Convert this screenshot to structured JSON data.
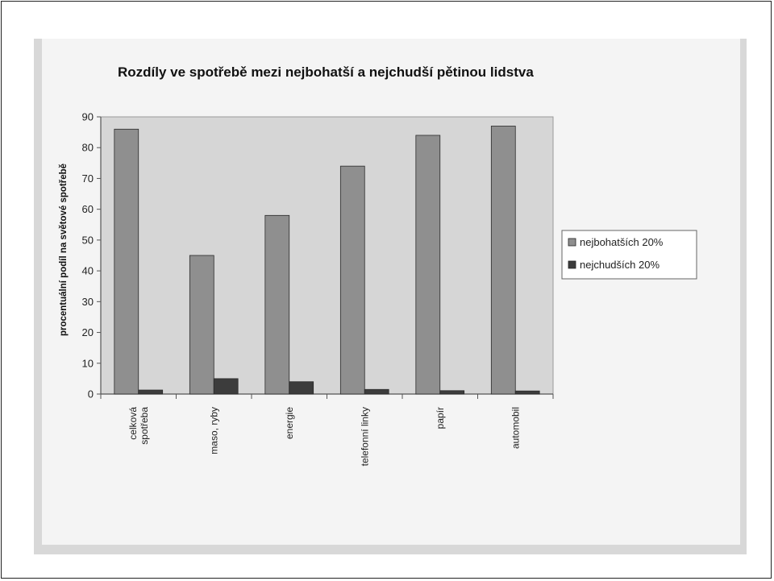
{
  "colors": {
    "rich": "#8f8f8f",
    "poor": "#3c3c3c",
    "plot_bg": "#d6d6d6",
    "axis": "#555555"
  },
  "chart_data": {
    "type": "bar",
    "title": "Rozdíly ve spotřebě mezi nejbohatší a nejchudší pětinou lidstva",
    "ylabel": "procentuální podíl na světové spotřebě",
    "xlabel": "",
    "ylim": [
      0,
      90
    ],
    "yticks": [
      0,
      10,
      20,
      30,
      40,
      50,
      60,
      70,
      80,
      90
    ],
    "grid": false,
    "legend_position": "right",
    "categories": [
      [
        "celková",
        "spotřeba"
      ],
      [
        "maso, ryby"
      ],
      [
        "energie"
      ],
      [
        "telefonní linky"
      ],
      [
        "papír"
      ],
      [
        "automobil"
      ]
    ],
    "series": [
      {
        "name": "nejbohatších 20%",
        "values": [
          86,
          45,
          58,
          74,
          84,
          87
        ]
      },
      {
        "name": "nejchudších 20%",
        "values": [
          1.3,
          5,
          4,
          1.5,
          1.1,
          1
        ]
      }
    ]
  }
}
